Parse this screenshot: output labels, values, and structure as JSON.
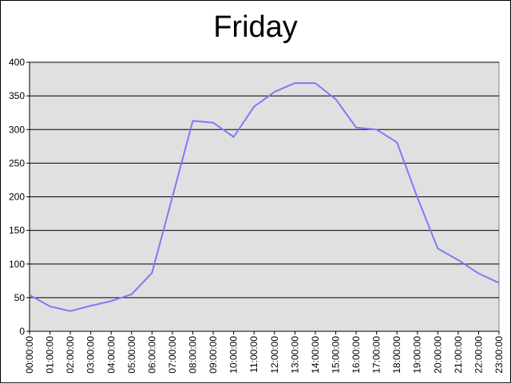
{
  "chart_data": {
    "type": "line",
    "title": "Friday",
    "xlabel": "",
    "ylabel": "",
    "ylim": [
      0,
      400
    ],
    "yticks": [
      0,
      50,
      100,
      150,
      200,
      250,
      300,
      350,
      400
    ],
    "grid": true,
    "legend": "none",
    "categories": [
      "00:00:00",
      "01:00:00",
      "02:00:00",
      "03:00:00",
      "04:00:00",
      "05:00:00",
      "06:00:00",
      "07:00:00",
      "08:00:00",
      "09:00:00",
      "10:00:00",
      "11:00:00",
      "12:00:00",
      "13:00:00",
      "14:00:00",
      "15:00:00",
      "16:00:00",
      "17:00:00",
      "18:00:00",
      "19:00:00",
      "20:00:00",
      "21:00:00",
      "22:00:00",
      "23:00:00"
    ],
    "series": [
      {
        "values": [
          54,
          37,
          30,
          38,
          45,
          55,
          87,
          200,
          313,
          310,
          289,
          334,
          356,
          369,
          369,
          345,
          303,
          300,
          281,
          199,
          123,
          106,
          86,
          72
        ]
      }
    ],
    "colors": {
      "line": "#7b7bf7",
      "plot_background": "#e0e0e0",
      "grid": "#000000"
    }
  }
}
